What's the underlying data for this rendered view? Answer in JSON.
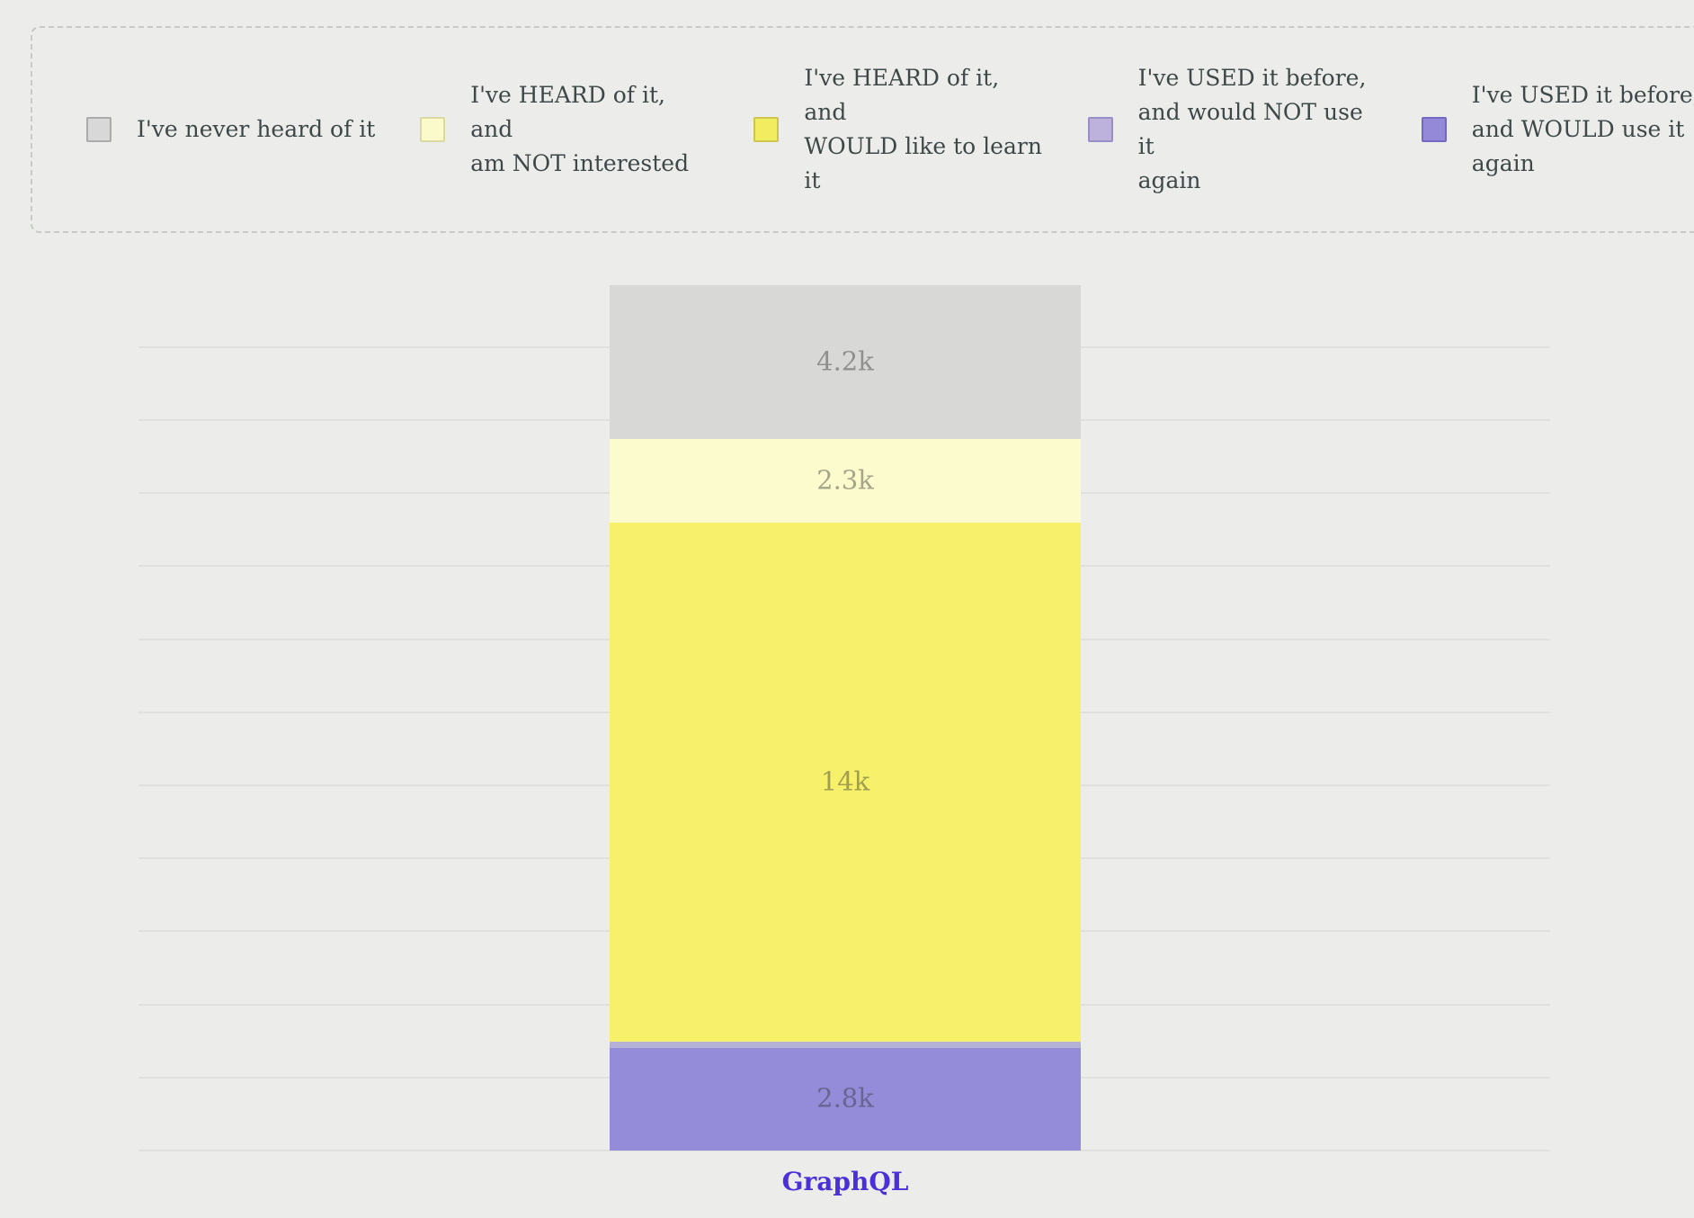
{
  "page": {
    "background_color": "#ECEDEA"
  },
  "legend": {
    "position": "top",
    "items": [
      {
        "id": "never-heard",
        "label": "I've never heard of it",
        "swatch_color": "#D8D8D8",
        "swatch_border": "#ABABAB"
      },
      {
        "id": "heard-not-interested",
        "label": "I've HEARD of it, and\nam NOT interested",
        "swatch_color": "#FBFACA",
        "swatch_border": "#DCD8A2"
      },
      {
        "id": "heard-would-learn",
        "label": "I've HEARD of it, and\nWOULD like to learn it",
        "swatch_color": "#F2EC60",
        "swatch_border": "#CCC64E"
      },
      {
        "id": "used-not-again",
        "label": "I've USED it before,\nand would NOT use it\nagain",
        "swatch_color": "#BCB2DC",
        "swatch_border": "#9A8EC8"
      },
      {
        "id": "used-would-again",
        "label": "I've USED it before,\nand WOULD use it\nagain",
        "swatch_color": "#9488D8",
        "swatch_border": "#7568C0"
      }
    ]
  },
  "chart_data": {
    "type": "bar",
    "stacked": true,
    "orientation": "vertical",
    "categories": [
      "GraphQL"
    ],
    "category_label_color": "#4B2FD8",
    "segments_top_to_bottom": [
      {
        "name": "I've never heard of it",
        "value_k": 4.2,
        "label": "4.2k",
        "color": "#D8D8D6"
      },
      {
        "name": "I've HEARD of it, and am NOT interested",
        "value_k": 2.3,
        "label": "2.3k",
        "color": "#FCFBCD"
      },
      {
        "name": "I've HEARD of it, and WOULD like to learn it",
        "value_k": 14.2,
        "label": "14k",
        "color": "#F7F06A"
      },
      {
        "name": "I've USED it before, and would NOT use it again",
        "value_k": 0.17,
        "label": "",
        "color": "#B4B0D6"
      },
      {
        "name": "I've USED it before, and WOULD use it again",
        "value_k": 2.8,
        "label": "2.8k",
        "color": "#948CD8"
      }
    ],
    "value_label_color": "rgba(45,45,45,0.42)",
    "yaxis": {
      "tick_labels_visible": false,
      "ylim_k": [
        0,
        22
      ],
      "grid_step_k": 2,
      "gridlines_visible": true
    },
    "legend_position": "top",
    "title": ""
  }
}
